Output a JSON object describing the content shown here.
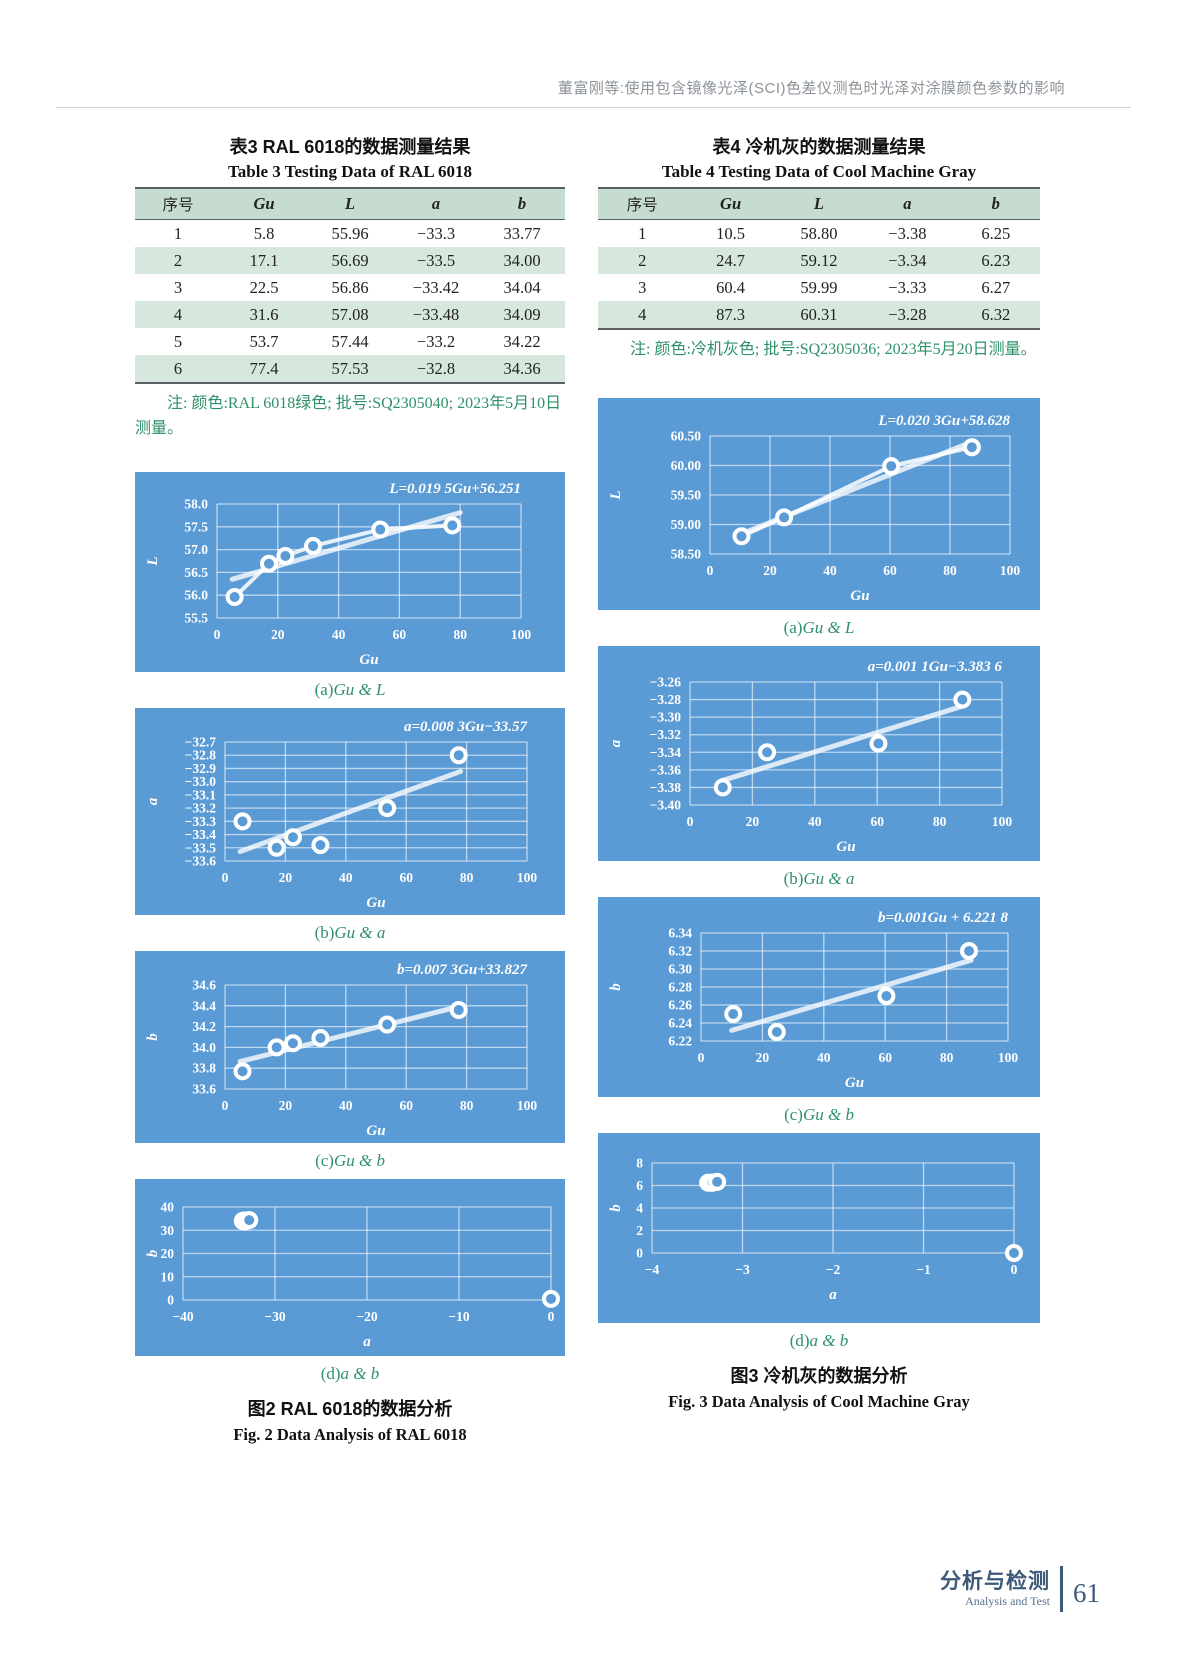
{
  "header": {
    "running_title": "董富刚等:使用包含镜像光泽(SCI)色差仪测色时光泽对涂膜颜色参数的影响"
  },
  "tables": {
    "t3": {
      "title_zh": "表3  RAL 6018的数据测量结果",
      "title_en": "Table 3  Testing Data of RAL 6018",
      "headers": [
        "序号",
        "Gu",
        "L",
        "a",
        "b"
      ],
      "rows": [
        [
          "1",
          "5.8",
          "55.96",
          "−33.3",
          "33.77"
        ],
        [
          "2",
          "17.1",
          "56.69",
          "−33.5",
          "34.00"
        ],
        [
          "3",
          "22.5",
          "56.86",
          "−33.42",
          "34.04"
        ],
        [
          "4",
          "31.6",
          "57.08",
          "−33.48",
          "34.09"
        ],
        [
          "5",
          "53.7",
          "57.44",
          "−33.2",
          "34.22"
        ],
        [
          "6",
          "77.4",
          "57.53",
          "−32.8",
          "34.36"
        ]
      ],
      "note": "注: 颜色:RAL 6018绿色; 批号:SQ2305040; 2023年5月10日测量。"
    },
    "t4": {
      "title_zh": "表4  冷机灰的数据测量结果",
      "title_en": "Table 4  Testing Data of Cool Machine Gray",
      "headers": [
        "序号",
        "Gu",
        "L",
        "a",
        "b"
      ],
      "rows": [
        [
          "1",
          "10.5",
          "58.80",
          "−3.38",
          "6.25"
        ],
        [
          "2",
          "24.7",
          "59.12",
          "−3.34",
          "6.23"
        ],
        [
          "3",
          "60.4",
          "59.99",
          "−3.33",
          "6.27"
        ],
        [
          "4",
          "87.3",
          "60.31",
          "−3.28",
          "6.32"
        ]
      ],
      "note": "注: 颜色:冷机灰色; 批号:SQ2305036; 2023年5月20日测量。"
    }
  },
  "chart_data": [
    {
      "type": "scatter",
      "caption_prefix": "(a)",
      "caption_var": "Gu & L",
      "equation": "L=0.019 5Gu+56.251",
      "xlabel": "Gu",
      "ylabel": "L",
      "xlim": [
        0,
        100
      ],
      "xticks": [
        0,
        20,
        40,
        60,
        80,
        100
      ],
      "xtick_labels": [
        "0",
        "20",
        "40",
        "60",
        "80",
        "100"
      ],
      "ylim": [
        55.5,
        58.0
      ],
      "yticks": [
        55.5,
        56.0,
        56.5,
        57.0,
        57.5,
        58.0
      ],
      "ytick_labels": [
        "55.5",
        "56.0",
        "56.5",
        "57.0",
        "57.5",
        "58.0"
      ],
      "points": [
        [
          5.8,
          55.96
        ],
        [
          17.1,
          56.69
        ],
        [
          22.5,
          56.86
        ],
        [
          31.6,
          57.08
        ],
        [
          53.7,
          57.44
        ],
        [
          77.4,
          57.53
        ]
      ],
      "trend": {
        "m": 0.0195,
        "c": 56.251,
        "x0": 5,
        "x1": 80
      },
      "connect": true,
      "grid": true,
      "legend": "none"
    },
    {
      "type": "scatter",
      "caption_prefix": "(b)",
      "caption_var": "Gu & a",
      "equation": "a=0.008 3Gu−33.57",
      "xlabel": "Gu",
      "ylabel": "a",
      "xlim": [
        0,
        100
      ],
      "xticks": [
        0,
        20,
        40,
        60,
        80,
        100
      ],
      "xtick_labels": [
        "0",
        "20",
        "40",
        "60",
        "80",
        "100"
      ],
      "ylim": [
        -33.6,
        -32.7
      ],
      "yticks": [
        -33.6,
        -33.5,
        -33.4,
        -33.3,
        -33.2,
        -33.1,
        -33.0,
        -32.9,
        -32.8,
        -32.7
      ],
      "ytick_labels": [
        "−33.6",
        "−33.5",
        "−33.4",
        "−33.3",
        "−33.2",
        "−33.1",
        "−33.0",
        "−32.9",
        "−32.8",
        "−32.7"
      ],
      "points": [
        [
          5.8,
          -33.3
        ],
        [
          17.1,
          -33.5
        ],
        [
          22.5,
          -33.42
        ],
        [
          31.6,
          -33.48
        ],
        [
          53.7,
          -33.2
        ],
        [
          77.4,
          -32.8
        ]
      ],
      "trend": {
        "m": 0.0083,
        "c": -33.57,
        "x0": 5,
        "x1": 78
      },
      "connect": false,
      "grid": true,
      "legend": "none"
    },
    {
      "type": "scatter",
      "caption_prefix": "(c)",
      "caption_var": "Gu & b",
      "equation": "b=0.007 3Gu+33.827",
      "xlabel": "Gu",
      "ylabel": "b",
      "xlim": [
        0,
        100
      ],
      "xticks": [
        0,
        20,
        40,
        60,
        80,
        100
      ],
      "xtick_labels": [
        "0",
        "20",
        "40",
        "60",
        "80",
        "100"
      ],
      "ylim": [
        33.6,
        34.6
      ],
      "yticks": [
        33.6,
        33.8,
        34.0,
        34.2,
        34.4,
        34.6
      ],
      "ytick_labels": [
        "33.6",
        "33.8",
        "34.0",
        "34.2",
        "34.4",
        "34.6"
      ],
      "points": [
        [
          5.8,
          33.77
        ],
        [
          17.1,
          34.0
        ],
        [
          22.5,
          34.04
        ],
        [
          31.6,
          34.09
        ],
        [
          53.7,
          34.22
        ],
        [
          77.4,
          34.36
        ]
      ],
      "trend": {
        "m": 0.0073,
        "c": 33.827,
        "x0": 5,
        "x1": 78
      },
      "connect": false,
      "grid": true,
      "legend": "none"
    },
    {
      "type": "scatter",
      "caption_prefix": "(d)",
      "caption_var": "a & b",
      "equation": null,
      "xlabel": "a",
      "ylabel": "b",
      "xlim": [
        -40,
        0
      ],
      "xticks": [
        -40,
        -30,
        -20,
        -10,
        0
      ],
      "xtick_labels": [
        "−40",
        "−30",
        "−20",
        "−10",
        "0"
      ],
      "ylim": [
        0,
        40
      ],
      "yticks": [
        0,
        10,
        20,
        30,
        40
      ],
      "ytick_labels": [
        "0",
        "10",
        "20",
        "30",
        "40"
      ],
      "points": [
        [
          -33.3,
          33.77
        ],
        [
          -33.5,
          34.0
        ],
        [
          -33.42,
          34.04
        ],
        [
          -33.48,
          34.09
        ],
        [
          -33.2,
          34.22
        ],
        [
          -32.8,
          34.36
        ],
        [
          0,
          0.5
        ]
      ],
      "trend": null,
      "connect": false,
      "grid": true,
      "legend": "none"
    },
    {
      "type": "scatter",
      "caption_prefix": "(a)",
      "caption_var": "Gu & L",
      "equation": "L=0.020 3Gu+58.628",
      "xlabel": "Gu",
      "ylabel": "L",
      "xlim": [
        0,
        100
      ],
      "xticks": [
        0,
        20,
        40,
        60,
        80,
        100
      ],
      "xtick_labels": [
        "0",
        "20",
        "40",
        "60",
        "80",
        "100"
      ],
      "ylim": [
        58.5,
        60.5
      ],
      "yticks": [
        58.5,
        59.0,
        59.5,
        60.0,
        60.5
      ],
      "ytick_labels": [
        "58.50",
        "59.00",
        "59.50",
        "60.00",
        "60.50"
      ],
      "points": [
        [
          10.5,
          58.8
        ],
        [
          24.7,
          59.12
        ],
        [
          60.4,
          59.99
        ],
        [
          87.3,
          60.31
        ]
      ],
      "trend": {
        "m": 0.0203,
        "c": 58.628,
        "x0": 10,
        "x1": 88
      },
      "connect": true,
      "grid": true,
      "legend": "none"
    },
    {
      "type": "scatter",
      "caption_prefix": "(b)",
      "caption_var": "Gu & a",
      "equation": "a=0.001 1Gu−3.383 6",
      "xlabel": "Gu",
      "ylabel": "a",
      "xlim": [
        0,
        100
      ],
      "xticks": [
        0,
        20,
        40,
        60,
        80,
        100
      ],
      "xtick_labels": [
        "0",
        "20",
        "40",
        "60",
        "80",
        "100"
      ],
      "ylim": [
        -3.4,
        -3.26
      ],
      "yticks": [
        -3.4,
        -3.38,
        -3.36,
        -3.34,
        -3.32,
        -3.3,
        -3.28,
        -3.26
      ],
      "ytick_labels": [
        "−3.40",
        "−3.38",
        "−3.36",
        "−3.34",
        "−3.32",
        "−3.30",
        "−3.28",
        "−3.26"
      ],
      "points": [
        [
          10.5,
          -3.38
        ],
        [
          24.7,
          -3.34
        ],
        [
          60.4,
          -3.33
        ],
        [
          87.3,
          -3.28
        ]
      ],
      "trend": {
        "m": 0.0011,
        "c": -3.3836,
        "x0": 10,
        "x1": 88
      },
      "connect": false,
      "grid": true,
      "legend": "none"
    },
    {
      "type": "scatter",
      "caption_prefix": "(c)",
      "caption_var": "Gu & b",
      "equation": "b=0.001Gu + 6.221 8",
      "xlabel": "Gu",
      "ylabel": "b",
      "xlim": [
        0,
        100
      ],
      "xticks": [
        0,
        20,
        40,
        60,
        80,
        100
      ],
      "xtick_labels": [
        "0",
        "20",
        "40",
        "60",
        "80",
        "100"
      ],
      "ylim": [
        6.22,
        6.34
      ],
      "yticks": [
        6.22,
        6.24,
        6.26,
        6.28,
        6.3,
        6.32,
        6.34
      ],
      "ytick_labels": [
        "6.22",
        "6.24",
        "6.26",
        "6.28",
        "6.30",
        "6.32",
        "6.34"
      ],
      "points": [
        [
          10.5,
          6.25
        ],
        [
          24.7,
          6.23
        ],
        [
          60.4,
          6.27
        ],
        [
          87.3,
          6.32
        ]
      ],
      "trend": {
        "m": 0.001,
        "c": 6.2218,
        "x0": 10,
        "x1": 88
      },
      "connect": false,
      "grid": true,
      "legend": "none"
    },
    {
      "type": "scatter",
      "caption_prefix": "(d)",
      "caption_var": "a & b",
      "equation": null,
      "xlabel": "a",
      "ylabel": "b",
      "xlim": [
        -4,
        0
      ],
      "xticks": [
        -4,
        -3,
        -2,
        -1,
        0
      ],
      "xtick_labels": [
        "−4",
        "−3",
        "−2",
        "−1",
        "0"
      ],
      "ylim": [
        0,
        8
      ],
      "yticks": [
        0,
        2,
        4,
        6,
        8
      ],
      "ytick_labels": [
        "0",
        "2",
        "4",
        "6",
        "8"
      ],
      "points": [
        [
          -3.38,
          6.25
        ],
        [
          -3.34,
          6.23
        ],
        [
          -3.33,
          6.27
        ],
        [
          -3.28,
          6.32
        ],
        [
          0,
          0
        ]
      ],
      "trend": null,
      "connect": false,
      "grid": true,
      "legend": "none"
    }
  ],
  "figures": {
    "fig2": {
      "caption_zh": "图2  RAL 6018的数据分析",
      "caption_en": "Fig. 2  Data Analysis of RAL 6018"
    },
    "fig3": {
      "caption_zh": "图3  冷机灰的数据分析",
      "caption_en": "Fig. 3  Data Analysis of Cool Machine Gray"
    }
  },
  "footer": {
    "section_zh": "分析与检测",
    "section_en": "Analysis and Test",
    "page": "61"
  },
  "colors": {
    "chart_bg": "#5b9bd5",
    "chart_line": "#ffffff",
    "accent_green": "#2e9168",
    "table_header_bg": "#c7dcd1",
    "table_alt_row_bg": "#d6e7dd",
    "footer_blue": "#3d5878",
    "running_head_gray": "#8b9298"
  }
}
